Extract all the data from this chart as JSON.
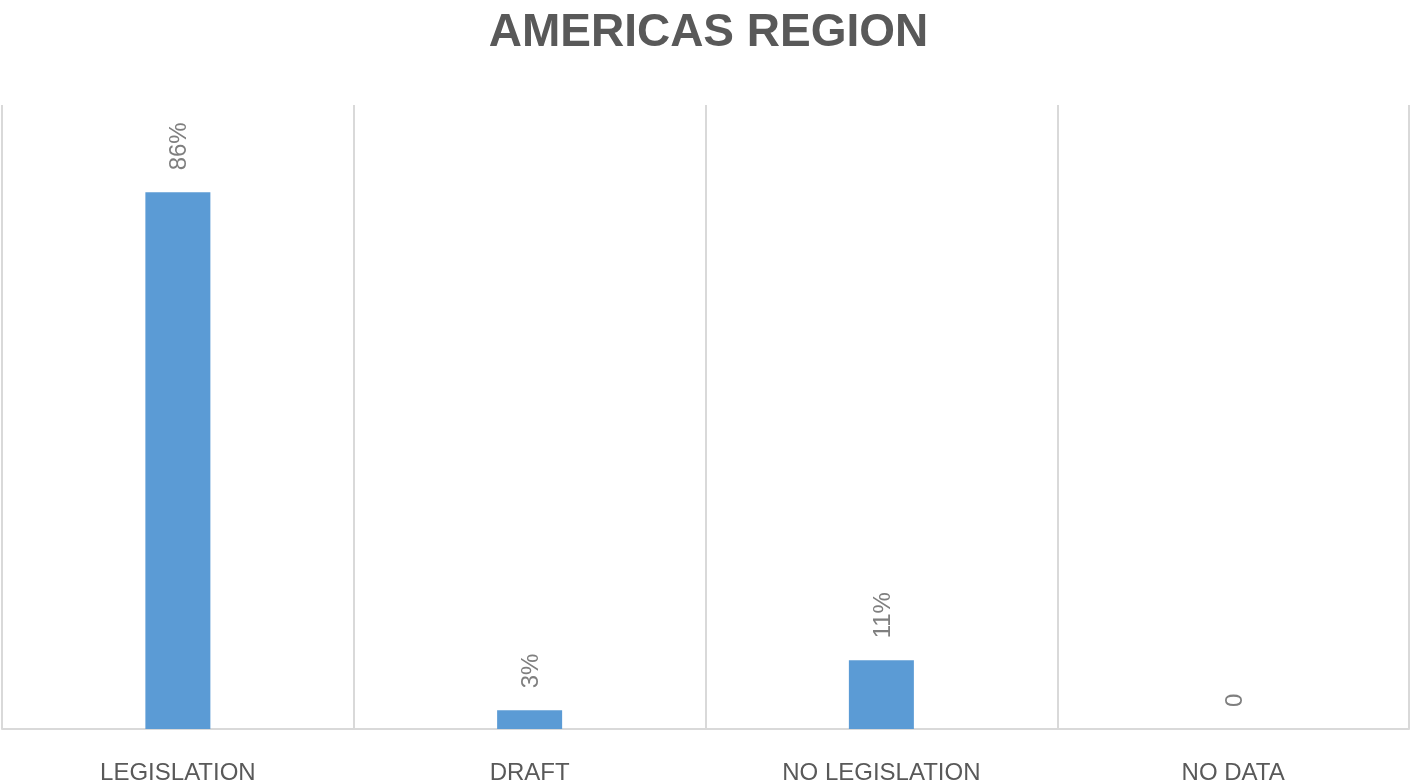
{
  "chart_data": {
    "type": "bar",
    "title": "AMERICAS REGION",
    "categories": [
      "LEGISLATION",
      "DRAFT",
      "NO LEGISLATION",
      "NO DATA"
    ],
    "values": [
      86,
      3,
      11,
      0
    ],
    "value_labels": [
      "86%",
      "3%",
      "11%",
      "0"
    ],
    "color": "#5b9bd5",
    "grid": "x"
  }
}
